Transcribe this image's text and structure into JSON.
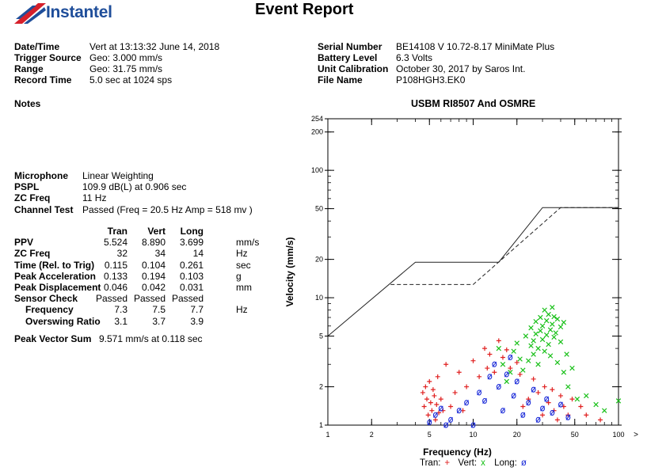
{
  "header": {
    "brand": "Instantel",
    "report_title": "Event Report"
  },
  "info_left": [
    {
      "label": "Date/Time",
      "value": "Vert at 13:13:32 June 14, 2018"
    },
    {
      "label": "Trigger Source",
      "value": "Geo: 3.000 mm/s"
    },
    {
      "label": "Range",
      "value": "Geo: 31.75 mm/s"
    },
    {
      "label": "Record Time",
      "value": "5.0 sec at 1024 sps"
    }
  ],
  "info_right": [
    {
      "label": "Serial Number",
      "value": "BE14108 V 10.72-8.17 MiniMate Plus"
    },
    {
      "label": "Battery Level",
      "value": "6.3 Volts"
    },
    {
      "label": "Unit Calibration",
      "value": "October 30, 2017 by Saros Int."
    },
    {
      "label": "File Name",
      "value": "P108HGH3.EK0"
    }
  ],
  "notes_label": "Notes",
  "mic": [
    {
      "label": "Microphone",
      "value": "Linear Weighting"
    },
    {
      "label": "PSPL",
      "value": "109.9 dB(L) at 0.906 sec"
    },
    {
      "label": "ZC Freq",
      "value": "11 Hz"
    },
    {
      "label": "Channel Test",
      "value": "Passed (Freq = 20.5 Hz Amp = 518 mv )"
    }
  ],
  "geo_table": {
    "columns": [
      "Tran",
      "Vert",
      "Long"
    ],
    "rows": [
      {
        "label": "PPV",
        "values": [
          "5.524",
          "8.890",
          "3.699"
        ],
        "unit": "mm/s",
        "indent": false
      },
      {
        "label": "ZC Freq",
        "values": [
          "32",
          "34",
          "14"
        ],
        "unit": "Hz",
        "indent": false
      },
      {
        "label": "Time (Rel. to Trig)",
        "values": [
          "0.115",
          "0.104",
          "0.261"
        ],
        "unit": "sec",
        "indent": false
      },
      {
        "label": "Peak Acceleration",
        "values": [
          "0.133",
          "0.194",
          "0.103"
        ],
        "unit": "g",
        "indent": false
      },
      {
        "label": "Peak Displacement",
        "values": [
          "0.046",
          "0.042",
          "0.031"
        ],
        "unit": "mm",
        "indent": false
      },
      {
        "label": "Sensor Check",
        "values": [
          "Passed",
          "Passed",
          "Passed"
        ],
        "unit": "",
        "indent": false
      },
      {
        "label": "Frequency",
        "values": [
          "7.3",
          "7.5",
          "7.7"
        ],
        "unit": "Hz",
        "indent": true
      },
      {
        "label": "Overswing Ratio",
        "values": [
          "3.1",
          "3.7",
          "3.9"
        ],
        "unit": "",
        "indent": true
      }
    ]
  },
  "pvs": {
    "label": "Peak Vector Sum",
    "value": "9.571 mm/s at 0.118 sec"
  },
  "chart_data": {
    "type": "scatter",
    "title": "USBM RI8507 And OSMRE",
    "xlabel": "Frequency (Hz)",
    "ylabel": "Velocity (mm/s)",
    "x_scale": "log",
    "y_scale": "log",
    "xlim": [
      1,
      100
    ],
    "ylim": [
      1,
      254
    ],
    "x_ticks": [
      1,
      2,
      5,
      10,
      20,
      50,
      100
    ],
    "y_ticks": [
      1,
      2,
      5,
      10,
      20,
      50,
      100,
      200,
      254
    ],
    "x_end_marker": ">",
    "legend_position": "bottom",
    "legend": [
      {
        "name": "Tran:",
        "symbol": "+",
        "color": "#e02020"
      },
      {
        "name": "Vert:",
        "symbol": "x",
        "color": "#18c018"
      },
      {
        "name": "Long:",
        "symbol": "ø",
        "color": "#1a2ad8"
      }
    ],
    "limit_lines": [
      {
        "style": "solid",
        "points": [
          [
            1,
            5
          ],
          [
            4,
            19
          ],
          [
            15,
            19
          ],
          [
            30,
            51
          ],
          [
            100,
            51
          ]
        ]
      },
      {
        "style": "dashed",
        "points": [
          [
            2.7,
            12.7
          ],
          [
            10,
            12.7
          ],
          [
            40,
            51
          ],
          [
            100,
            51
          ]
        ]
      }
    ],
    "series": [
      {
        "name": "Tran",
        "symbol": "+",
        "color": "#e02020",
        "points": [
          [
            4.5,
            1.8
          ],
          [
            4.6,
            1.4
          ],
          [
            4.7,
            2.0
          ],
          [
            4.8,
            1.6
          ],
          [
            4.9,
            1.2
          ],
          [
            5.0,
            2.2
          ],
          [
            5.1,
            1.5
          ],
          [
            5.2,
            1.3
          ],
          [
            5.3,
            1.9
          ],
          [
            5.4,
            1.7
          ],
          [
            5.5,
            1.1
          ],
          [
            5.6,
            1.45
          ],
          [
            5.7,
            2.4
          ],
          [
            5.8,
            1.25
          ],
          [
            6.0,
            1.6
          ],
          [
            6.2,
            1.3
          ],
          [
            6.5,
            3.0
          ],
          [
            7.0,
            1.4
          ],
          [
            7.5,
            1.8
          ],
          [
            8.0,
            2.6
          ],
          [
            8.5,
            1.3
          ],
          [
            9.0,
            2.0
          ],
          [
            10,
            3.2
          ],
          [
            11,
            2.4
          ],
          [
            12,
            4.0
          ],
          [
            12.5,
            2.8
          ],
          [
            13,
            3.6
          ],
          [
            14,
            2.6
          ],
          [
            15,
            4.6
          ],
          [
            16,
            3.4
          ],
          [
            17,
            3.9
          ],
          [
            18,
            2.8
          ],
          [
            20,
            3.1
          ],
          [
            21,
            2.5
          ],
          [
            22,
            1.4
          ],
          [
            24,
            1.6
          ],
          [
            26,
            2.3
          ],
          [
            28,
            1.8
          ],
          [
            30,
            1.2
          ],
          [
            31,
            2.0
          ],
          [
            33,
            1.5
          ],
          [
            35,
            1.9
          ],
          [
            36,
            1.3
          ],
          [
            38,
            1.1
          ],
          [
            40,
            1.7
          ],
          [
            42,
            1.4
          ],
          [
            45,
            1.2
          ],
          [
            48,
            1.6
          ],
          [
            55,
            1.4
          ],
          [
            60,
            1.2
          ],
          [
            75,
            1.1
          ]
        ]
      },
      {
        "name": "Vert",
        "symbol": "x",
        "color": "#18c018",
        "points": [
          [
            15,
            4.0
          ],
          [
            16,
            3.0
          ],
          [
            17,
            2.2
          ],
          [
            18,
            2.6
          ],
          [
            19,
            3.8
          ],
          [
            20,
            4.4
          ],
          [
            21,
            3.3
          ],
          [
            22,
            2.7
          ],
          [
            23,
            5.0
          ],
          [
            24,
            3.2
          ],
          [
            25,
            4.2
          ],
          [
            25,
            5.8
          ],
          [
            26,
            4.6
          ],
          [
            26,
            3.6
          ],
          [
            27,
            6.5
          ],
          [
            27,
            5.2
          ],
          [
            28,
            4.0
          ],
          [
            28,
            3.0
          ],
          [
            29,
            7.0
          ],
          [
            29,
            5.5
          ],
          [
            30,
            4.7
          ],
          [
            30,
            6.0
          ],
          [
            31,
            8.0
          ],
          [
            31,
            3.8
          ],
          [
            32,
            5.1
          ],
          [
            32,
            6.6
          ],
          [
            33,
            4.3
          ],
          [
            33,
            7.4
          ],
          [
            34,
            5.6
          ],
          [
            34,
            3.5
          ],
          [
            35,
            8.4
          ],
          [
            35,
            6.2
          ],
          [
            36,
            4.9
          ],
          [
            36,
            7.1
          ],
          [
            37,
            5.3
          ],
          [
            38,
            6.8
          ],
          [
            38,
            3.1
          ],
          [
            40,
            5.9
          ],
          [
            40,
            4.5
          ],
          [
            42,
            2.6
          ],
          [
            42,
            6.4
          ],
          [
            44,
            3.6
          ],
          [
            45,
            2.0
          ],
          [
            48,
            2.8
          ],
          [
            52,
            1.6
          ],
          [
            60,
            1.7
          ],
          [
            70,
            1.45
          ],
          [
            80,
            1.3
          ],
          [
            100,
            1.55
          ]
        ]
      },
      {
        "name": "Long",
        "symbol": "ø",
        "color": "#1a2ad8",
        "points": [
          [
            5,
            1.05
          ],
          [
            5.5,
            1.2
          ],
          [
            6.0,
            1.35
          ],
          [
            6.5,
            1.0
          ],
          [
            7.0,
            1.1
          ],
          [
            8.0,
            1.3
          ],
          [
            9.0,
            1.5
          ],
          [
            10,
            1.0
          ],
          [
            11,
            1.8
          ],
          [
            12,
            1.55
          ],
          [
            13,
            2.4
          ],
          [
            14,
            3.0
          ],
          [
            15,
            2.0
          ],
          [
            16,
            1.3
          ],
          [
            17,
            2.5
          ],
          [
            18,
            3.4
          ],
          [
            19,
            1.7
          ],
          [
            20,
            2.2
          ],
          [
            22,
            1.2
          ],
          [
            24,
            1.5
          ],
          [
            26,
            1.9
          ],
          [
            28,
            1.1
          ],
          [
            30,
            1.35
          ],
          [
            32,
            1.6
          ],
          [
            35,
            1.25
          ],
          [
            40,
            1.45
          ],
          [
            45,
            1.15
          ]
        ]
      }
    ]
  }
}
